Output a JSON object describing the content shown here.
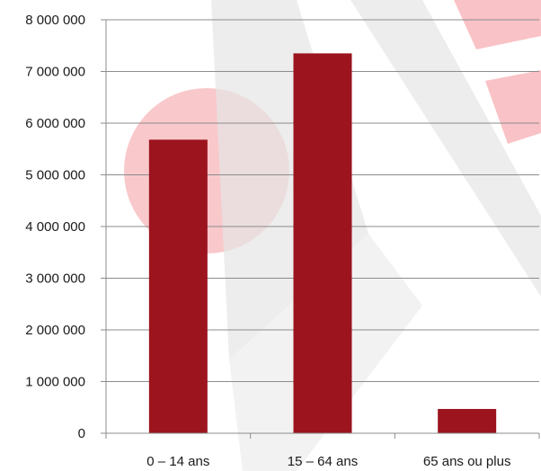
{
  "chart_data": {
    "type": "bar",
    "title": "",
    "xlabel": "",
    "ylabel": "",
    "categories": [
      "0 – 14 ans",
      "15 – 64 ans",
      "65 ans ou plus"
    ],
    "values": [
      5680000,
      7350000,
      470000
    ],
    "ylim": [
      0,
      8000000
    ],
    "yticks": [
      0,
      1000000,
      2000000,
      3000000,
      4000000,
      5000000,
      6000000,
      7000000,
      8000000
    ],
    "ytick_labels": [
      "0",
      "1 000 000",
      "2 000 000",
      "3 000 000",
      "4 000 000",
      "5 000 000",
      "6 000 000",
      "7 000 000",
      "8 000 000"
    ],
    "grid": "horizontal",
    "legend": "none",
    "bar_color": "#9b141e",
    "axis_color": "#8c8c8c",
    "grid_color": "#8c8c8c",
    "watermark_colors": [
      "#f7b5b9",
      "#f5a3a8",
      "#d9d9d9"
    ]
  }
}
